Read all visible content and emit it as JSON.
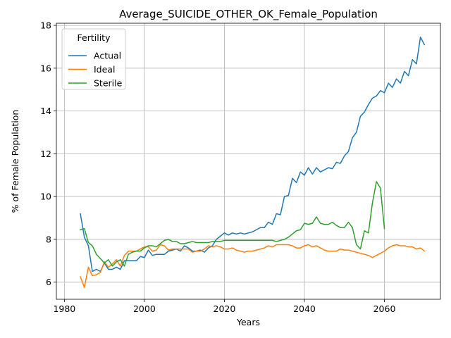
{
  "chart_data": {
    "type": "line",
    "title": "Average_SUICIDE_OTHER_OK_Female_Population",
    "xlabel": "Years",
    "ylabel": "% of Female Population",
    "xlim": [
      1978,
      2074
    ],
    "ylim": [
      5.2,
      18.1
    ],
    "xticks": [
      1980,
      2000,
      2020,
      2040,
      2060
    ],
    "yticks": [
      6,
      8,
      10,
      12,
      14,
      16,
      18
    ],
    "grid": true,
    "legend": {
      "title": "Fertility",
      "placement": "top-left"
    },
    "series": [
      {
        "name": "Actual",
        "color": "#1f77b4",
        "x": [
          1984,
          1985,
          1986,
          1987,
          1988,
          1989,
          1990,
          1991,
          1992,
          1993,
          1994,
          1995,
          1996,
          1997,
          1998,
          1999,
          2000,
          2001,
          2002,
          2003,
          2004,
          2005,
          2006,
          2007,
          2008,
          2009,
          2010,
          2011,
          2012,
          2013,
          2014,
          2015,
          2016,
          2017,
          2018,
          2019,
          2020,
          2021,
          2022,
          2023,
          2024,
          2025,
          2026,
          2027,
          2028,
          2029,
          2030,
          2031,
          2032,
          2033,
          2034,
          2035,
          2036,
          2037,
          2038,
          2039,
          2040,
          2041,
          2042,
          2043,
          2044,
          2045,
          2046,
          2047,
          2048,
          2049,
          2050,
          2051,
          2052,
          2053,
          2054,
          2055,
          2056,
          2057,
          2058,
          2059,
          2060,
          2061,
          2062,
          2063,
          2064,
          2065,
          2066,
          2067,
          2068,
          2069,
          2070
        ],
        "y": [
          9.2,
          8.1,
          7.7,
          6.5,
          6.6,
          6.5,
          6.9,
          6.6,
          6.6,
          6.7,
          6.6,
          7.0,
          7.0,
          7.0,
          7.0,
          7.2,
          7.15,
          7.5,
          7.25,
          7.3,
          7.3,
          7.3,
          7.45,
          7.5,
          7.55,
          7.45,
          7.7,
          7.6,
          7.45,
          7.45,
          7.5,
          7.4,
          7.6,
          7.7,
          8.0,
          8.15,
          8.3,
          8.2,
          8.3,
          8.25,
          8.3,
          8.25,
          8.3,
          8.35,
          8.45,
          8.55,
          8.55,
          8.8,
          8.7,
          9.2,
          9.15,
          10.0,
          10.05,
          10.85,
          10.65,
          11.15,
          11.0,
          11.35,
          11.05,
          11.35,
          11.15,
          11.25,
          11.35,
          11.3,
          11.6,
          11.55,
          11.9,
          12.1,
          12.75,
          13.0,
          13.75,
          13.95,
          14.3,
          14.6,
          14.7,
          14.95,
          14.85,
          15.3,
          15.1,
          15.5,
          15.3,
          15.85,
          15.65,
          16.4,
          16.2,
          17.45,
          17.1
        ]
      },
      {
        "name": "Ideal",
        "color": "#ff7f0e",
        "x": [
          1984,
          1985,
          1986,
          1987,
          1988,
          1989,
          1990,
          1991,
          1992,
          1993,
          1994,
          1995,
          1996,
          1997,
          1998,
          1999,
          2000,
          2001,
          2002,
          2003,
          2004,
          2005,
          2006,
          2007,
          2008,
          2009,
          2010,
          2011,
          2012,
          2013,
          2014,
          2015,
          2016,
          2017,
          2018,
          2019,
          2020,
          2021,
          2022,
          2023,
          2024,
          2025,
          2026,
          2027,
          2028,
          2029,
          2030,
          2031,
          2032,
          2033,
          2034,
          2035,
          2036,
          2037,
          2038,
          2039,
          2040,
          2041,
          2042,
          2043,
          2044,
          2045,
          2046,
          2047,
          2048,
          2049,
          2050,
          2051,
          2052,
          2053,
          2054,
          2055,
          2056,
          2057,
          2058,
          2059,
          2060,
          2061,
          2062,
          2063,
          2064,
          2065,
          2066,
          2067,
          2068,
          2069,
          2070
        ],
        "y": [
          6.25,
          5.75,
          6.7,
          6.3,
          6.35,
          6.45,
          6.95,
          6.7,
          6.85,
          7.05,
          6.75,
          7.25,
          7.45,
          7.45,
          7.45,
          7.55,
          7.65,
          7.65,
          7.45,
          7.5,
          7.75,
          7.7,
          7.5,
          7.55,
          7.55,
          7.55,
          7.55,
          7.55,
          7.4,
          7.45,
          7.45,
          7.55,
          7.7,
          7.65,
          7.7,
          7.65,
          7.55,
          7.55,
          7.6,
          7.5,
          7.45,
          7.4,
          7.45,
          7.45,
          7.5,
          7.55,
          7.6,
          7.7,
          7.65,
          7.75,
          7.75,
          7.75,
          7.75,
          7.7,
          7.6,
          7.6,
          7.7,
          7.75,
          7.65,
          7.7,
          7.6,
          7.5,
          7.45,
          7.45,
          7.45,
          7.55,
          7.5,
          7.5,
          7.45,
          7.4,
          7.35,
          7.3,
          7.25,
          7.15,
          7.25,
          7.35,
          7.45,
          7.6,
          7.7,
          7.75,
          7.7,
          7.7,
          7.65,
          7.65,
          7.55,
          7.6,
          7.45
        ]
      },
      {
        "name": "Sterile",
        "color": "#2ca02c",
        "x": [
          1984,
          1985,
          1986,
          1987,
          1988,
          1989,
          1990,
          1991,
          1992,
          1993,
          1994,
          1995,
          1996,
          1997,
          1998,
          1999,
          2000,
          2001,
          2002,
          2003,
          2004,
          2005,
          2006,
          2007,
          2008,
          2009,
          2010,
          2011,
          2012,
          2013,
          2014,
          2015,
          2016,
          2017,
          2018,
          2019,
          2020,
          2021,
          2022,
          2023,
          2024,
          2025,
          2026,
          2027,
          2028,
          2029,
          2030,
          2031,
          2032,
          2033,
          2034,
          2035,
          2036,
          2037,
          2038,
          2039,
          2040,
          2041,
          2042,
          2043,
          2044,
          2045,
          2046,
          2047,
          2048,
          2049,
          2050,
          2051,
          2052,
          2053,
          2054,
          2055,
          2056,
          2057,
          2058,
          2059,
          2060
        ],
        "y": [
          8.45,
          8.5,
          7.85,
          7.7,
          7.3,
          7.1,
          6.9,
          7.05,
          6.75,
          6.95,
          7.05,
          6.75,
          7.3,
          7.4,
          7.45,
          7.45,
          7.6,
          7.7,
          7.7,
          7.65,
          7.8,
          7.95,
          8.0,
          7.9,
          7.9,
          7.8,
          7.8,
          7.85,
          7.9,
          7.85,
          7.85,
          7.85,
          7.85,
          7.9,
          7.9,
          7.9,
          7.95,
          7.95,
          7.95,
          7.95,
          7.95,
          7.95,
          7.95,
          7.95,
          7.95,
          7.95,
          7.95,
          7.95,
          7.95,
          7.9,
          7.95,
          8.0,
          8.1,
          8.25,
          8.4,
          8.45,
          8.75,
          8.7,
          8.75,
          9.05,
          8.75,
          8.7,
          8.7,
          8.8,
          8.65,
          8.55,
          8.55,
          8.8,
          8.55,
          7.75,
          7.55,
          8.4,
          8.3,
          9.7,
          10.7,
          10.4,
          8.5
        ]
      }
    ]
  }
}
